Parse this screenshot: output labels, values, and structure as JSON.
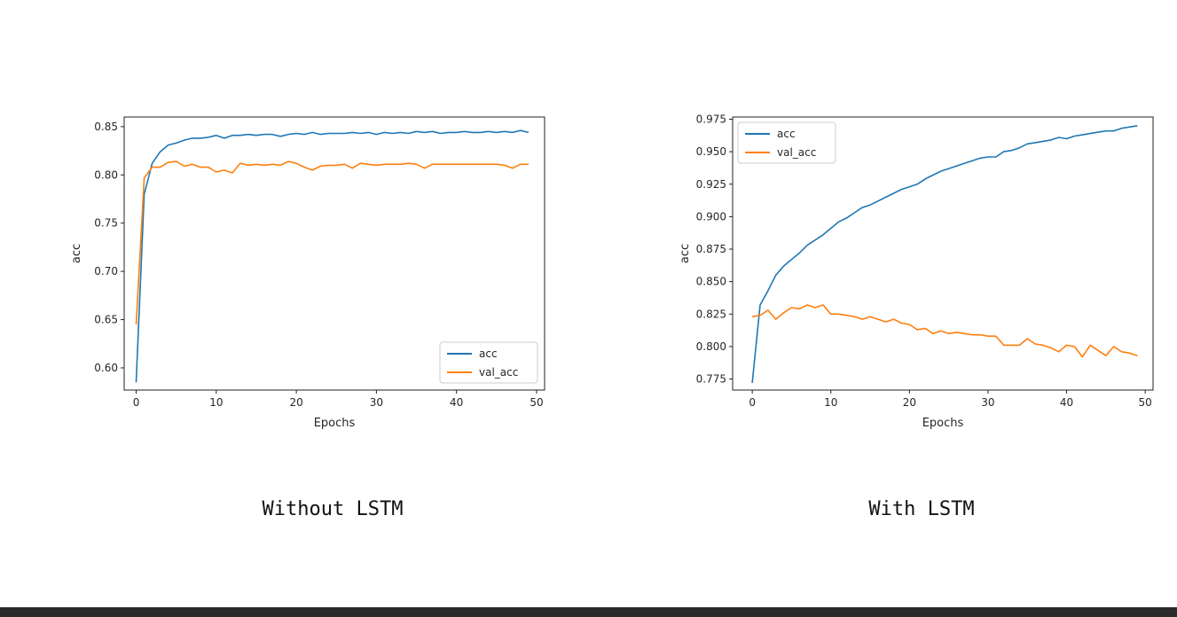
{
  "colors": {
    "acc": "#1f77b4",
    "val_acc": "#ff7f0e"
  },
  "chart_data": [
    {
      "type": "line",
      "caption": "Without LSTM",
      "xlabel": "Epochs",
      "ylabel": "acc",
      "xlim": [
        -1.5,
        51
      ],
      "ylim": [
        0.577,
        0.86
      ],
      "xticks": [
        0,
        10,
        20,
        30,
        40,
        50
      ],
      "yticks": [
        0.6,
        0.65,
        0.7,
        0.75,
        0.8,
        0.85
      ],
      "ytick_labels": [
        "0.60",
        "0.65",
        "0.70",
        "0.75",
        "0.80",
        "0.85"
      ],
      "legend_position": "lower-right",
      "grid": false,
      "x": [
        0,
        1,
        2,
        3,
        4,
        5,
        6,
        7,
        8,
        9,
        10,
        11,
        12,
        13,
        14,
        15,
        16,
        17,
        18,
        19,
        20,
        21,
        22,
        23,
        24,
        25,
        26,
        27,
        28,
        29,
        30,
        31,
        32,
        33,
        34,
        35,
        36,
        37,
        38,
        39,
        40,
        41,
        42,
        43,
        44,
        45,
        46,
        47,
        48,
        49
      ],
      "series": [
        {
          "name": "acc",
          "values": [
            0.585,
            0.78,
            0.812,
            0.824,
            0.831,
            0.833,
            0.836,
            0.838,
            0.838,
            0.839,
            0.841,
            0.838,
            0.841,
            0.841,
            0.842,
            0.841,
            0.842,
            0.842,
            0.84,
            0.842,
            0.843,
            0.842,
            0.844,
            0.842,
            0.843,
            0.843,
            0.843,
            0.844,
            0.843,
            0.844,
            0.842,
            0.844,
            0.843,
            0.844,
            0.843,
            0.845,
            0.844,
            0.845,
            0.843,
            0.844,
            0.844,
            0.845,
            0.844,
            0.844,
            0.845,
            0.844,
            0.845,
            0.844,
            0.846,
            0.844
          ]
        },
        {
          "name": "val_acc",
          "values": [
            0.645,
            0.797,
            0.808,
            0.808,
            0.813,
            0.814,
            0.809,
            0.811,
            0.808,
            0.808,
            0.803,
            0.805,
            0.802,
            0.812,
            0.81,
            0.811,
            0.81,
            0.811,
            0.81,
            0.814,
            0.812,
            0.808,
            0.805,
            0.809,
            0.81,
            0.81,
            0.811,
            0.807,
            0.812,
            0.811,
            0.81,
            0.811,
            0.811,
            0.811,
            0.812,
            0.811,
            0.807,
            0.811,
            0.811,
            0.811,
            0.811,
            0.811,
            0.811,
            0.811,
            0.811,
            0.811,
            0.81,
            0.807,
            0.811,
            0.811
          ]
        }
      ]
    },
    {
      "type": "line",
      "caption": "With LSTM",
      "xlabel": "Epochs",
      "ylabel": "acc",
      "xlim": [
        -2.5,
        51
      ],
      "ylim": [
        0.7665,
        0.9767
      ],
      "xticks": [
        0,
        10,
        20,
        30,
        40,
        50
      ],
      "yticks": [
        0.775,
        0.8,
        0.825,
        0.85,
        0.875,
        0.9,
        0.925,
        0.95,
        0.975
      ],
      "ytick_labels": [
        "0.775",
        "0.800",
        "0.825",
        "0.850",
        "0.875",
        "0.900",
        "0.925",
        "0.950",
        "0.975"
      ],
      "legend_position": "upper-left",
      "grid": false,
      "x": [
        0,
        1,
        2,
        3,
        4,
        5,
        6,
        7,
        8,
        9,
        10,
        11,
        12,
        13,
        14,
        15,
        16,
        17,
        18,
        19,
        20,
        21,
        22,
        23,
        24,
        25,
        26,
        27,
        28,
        29,
        30,
        31,
        32,
        33,
        34,
        35,
        36,
        37,
        38,
        39,
        40,
        41,
        42,
        43,
        44,
        45,
        46,
        47,
        48,
        49
      ],
      "series": [
        {
          "name": "acc",
          "values": [
            0.772,
            0.832,
            0.843,
            0.855,
            0.862,
            0.867,
            0.872,
            0.878,
            0.882,
            0.886,
            0.891,
            0.896,
            0.899,
            0.903,
            0.907,
            0.909,
            0.912,
            0.915,
            0.918,
            0.921,
            0.923,
            0.925,
            0.929,
            0.932,
            0.935,
            0.937,
            0.939,
            0.941,
            0.943,
            0.945,
            0.946,
            0.946,
            0.95,
            0.951,
            0.953,
            0.956,
            0.957,
            0.958,
            0.959,
            0.961,
            0.96,
            0.962,
            0.963,
            0.964,
            0.965,
            0.966,
            0.966,
            0.968,
            0.969,
            0.97
          ]
        },
        {
          "name": "val_acc",
          "values": [
            0.823,
            0.824,
            0.828,
            0.821,
            0.826,
            0.83,
            0.829,
            0.832,
            0.83,
            0.832,
            0.825,
            0.825,
            0.824,
            0.823,
            0.821,
            0.823,
            0.821,
            0.819,
            0.821,
            0.818,
            0.817,
            0.813,
            0.814,
            0.81,
            0.812,
            0.81,
            0.811,
            0.81,
            0.809,
            0.809,
            0.808,
            0.808,
            0.801,
            0.801,
            0.801,
            0.806,
            0.802,
            0.801,
            0.799,
            0.796,
            0.801,
            0.8,
            0.792,
            0.801,
            0.797,
            0.793,
            0.8,
            0.796,
            0.795,
            0.793
          ]
        }
      ]
    }
  ]
}
